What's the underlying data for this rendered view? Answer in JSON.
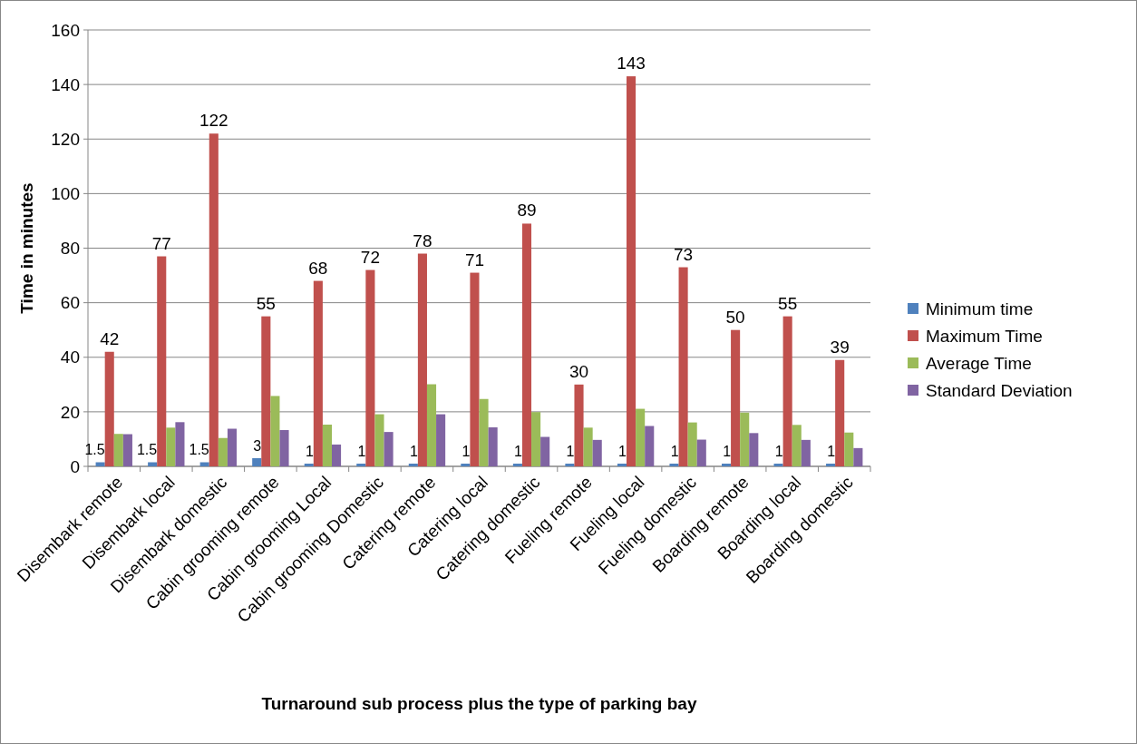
{
  "chart_data": {
    "type": "bar",
    "xlabel": "Turnaround sub process plus the type of parking bay",
    "ylabel": "Time in minutes",
    "categories": [
      "Disembark remote",
      "Disembark local",
      "Disembark domestic",
      "Cabin grooming remote",
      "Cabin grooming Local",
      "Cabin grooming Domestic",
      "Catering remote",
      "Catering local",
      "Catering domestic",
      "Fueling remote",
      "Fueling local",
      "Fueling domestic",
      "Boarding remote",
      "Boarding local",
      "Boarding domestic"
    ],
    "series": [
      {
        "name": "Minimum time",
        "color": "#4f81bd",
        "values": [
          1.5,
          1.5,
          1.5,
          3,
          1,
          1,
          1,
          1,
          1,
          1,
          1,
          1,
          1,
          1,
          1
        ],
        "value_labels": [
          "1.5",
          "1.5",
          "1.5",
          "3",
          "1",
          "1",
          "1",
          "1",
          "1",
          "1",
          "1",
          "1",
          "1",
          "1",
          "1"
        ]
      },
      {
        "name": "Maximum Time",
        "color": "#c0504d",
        "values": [
          42,
          77,
          122,
          55,
          68,
          72,
          78,
          71,
          89,
          30,
          143,
          73,
          50,
          55,
          39
        ],
        "value_labels": [
          "42",
          "77",
          "122",
          "55",
          "68",
          "72",
          "78",
          "71",
          "89",
          "30",
          "143",
          "73",
          "50",
          "55",
          "39"
        ]
      },
      {
        "name": "Average Time",
        "color": "#9bbb59",
        "values": [
          11.9,
          14.2,
          10.4,
          25.8,
          15.3,
          19.1,
          30.1,
          24.7,
          19.9,
          14.2,
          21.1,
          16.1,
          19.7,
          15.2,
          12.4
        ]
      },
      {
        "name": "Standard Deviation",
        "color": "#8064a2",
        "values": [
          11.8,
          16.2,
          13.8,
          13.3,
          8.0,
          12.6,
          19.1,
          14.3,
          10.8,
          9.7,
          14.8,
          9.8,
          12.2,
          9.7,
          6.7
        ]
      }
    ],
    "ylim": [
      0,
      160
    ],
    "yticks": [
      0,
      20,
      40,
      60,
      80,
      100,
      120,
      140,
      160
    ],
    "grid": "y",
    "legend": "right"
  }
}
